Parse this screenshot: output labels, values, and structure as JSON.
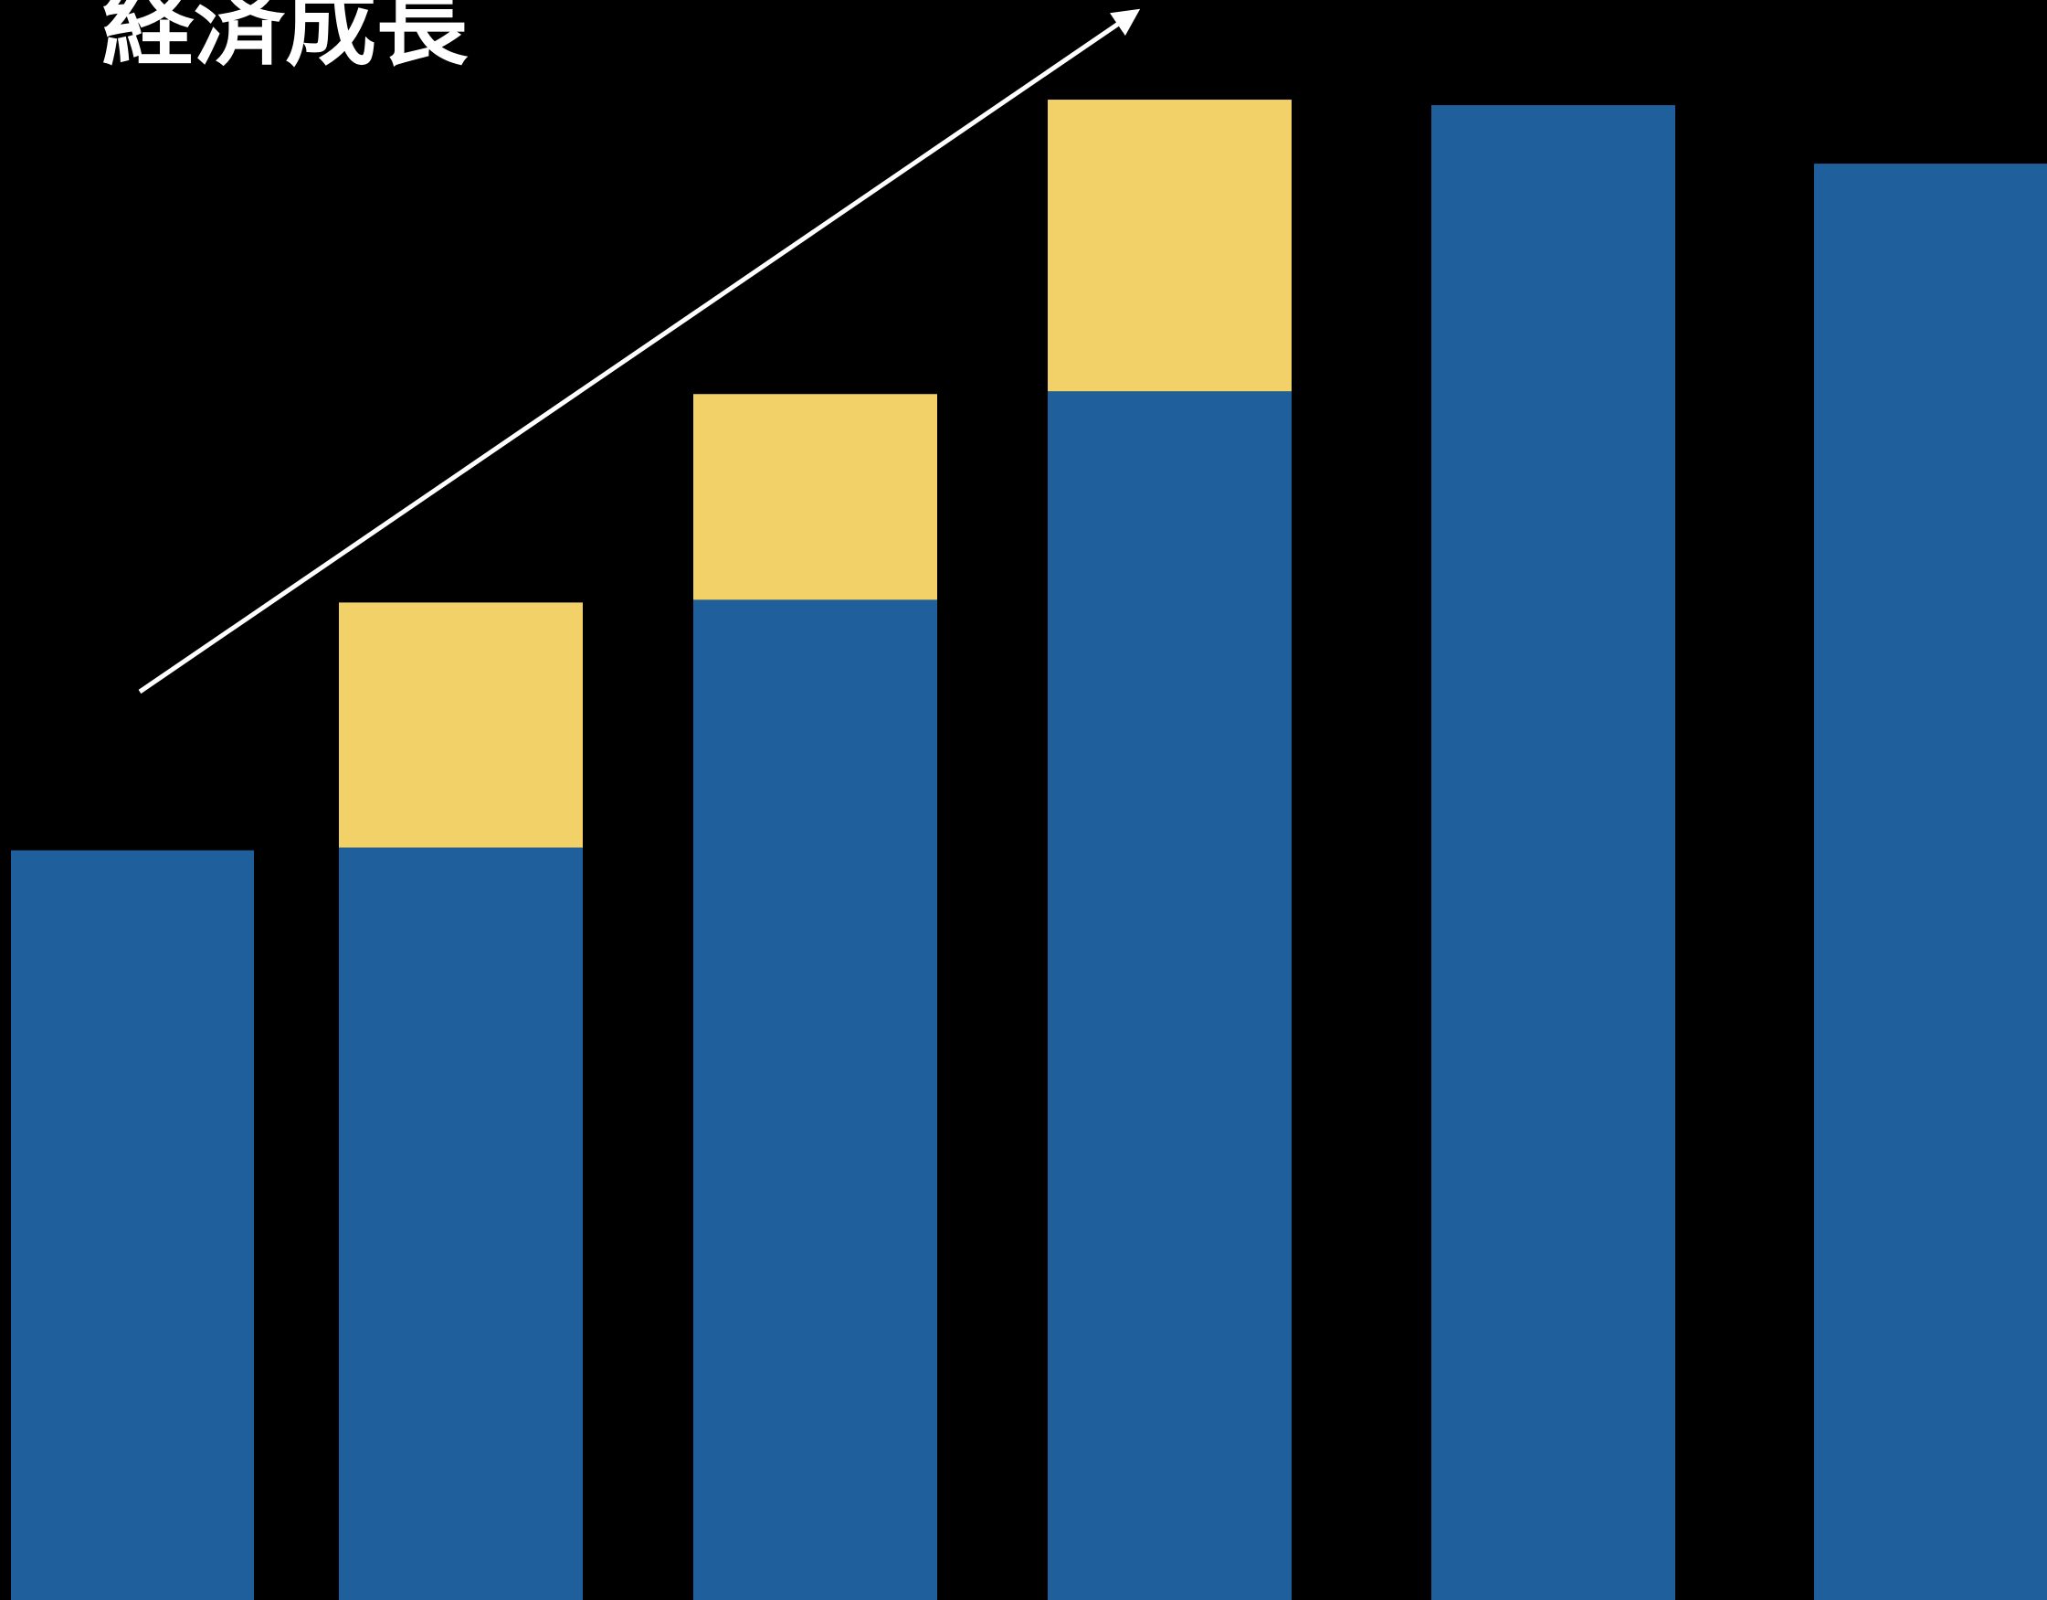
{
  "chart_data": {
    "type": "bar",
    "stacked": true,
    "title": "経済成長",
    "xlabel": "",
    "ylabel": "",
    "categories": [
      "",
      "",
      "",
      "",
      "",
      ""
    ],
    "series": [
      {
        "color": "#1f5f9b",
        "values": [
          820,
          823,
          1094,
          1322,
          1635,
          1571
        ]
      },
      {
        "color": "#f2d168",
        "values": [
          0,
          268,
          225,
          319,
          0,
          0
        ]
      }
    ],
    "trend_arrow": {
      "shown": true,
      "color": "#ffffff"
    },
    "ylim": [
      0,
      1750
    ],
    "grid": false,
    "legend": "none",
    "background": "#000000"
  }
}
